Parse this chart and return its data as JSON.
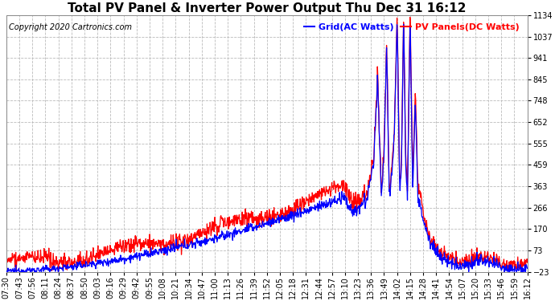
{
  "title": "Total PV Panel & Inverter Power Output Thu Dec 31 16:12",
  "copyright": "Copyright 2020 Cartronics.com",
  "legend_blue": "Grid(AC Watts)",
  "legend_red": "PV Panels(DC Watts)",
  "blue_color": "#0000FF",
  "red_color": "#FF0000",
  "background_color": "#FFFFFF",
  "grid_color": "#BBBBBB",
  "ylim": [
    -23.0,
    1133.8
  ],
  "yticks": [
    -23.0,
    73.4,
    169.8,
    266.2,
    362.6,
    459.0,
    555.4,
    651.8,
    748.2,
    844.6,
    941.0,
    1037.4,
    1133.8
  ],
  "xtick_labels": [
    "07:30",
    "07:43",
    "07:56",
    "08:11",
    "08:24",
    "08:37",
    "08:50",
    "09:03",
    "09:16",
    "09:29",
    "09:42",
    "09:55",
    "10:08",
    "10:21",
    "10:34",
    "10:47",
    "11:00",
    "11:13",
    "11:26",
    "11:39",
    "11:52",
    "12:05",
    "12:18",
    "12:31",
    "12:44",
    "12:57",
    "13:10",
    "13:23",
    "13:36",
    "13:49",
    "14:02",
    "14:15",
    "14:28",
    "14:41",
    "14:54",
    "15:07",
    "15:20",
    "15:33",
    "15:46",
    "15:59",
    "16:12"
  ],
  "title_fontsize": 11,
  "axis_fontsize": 7,
  "copyright_fontsize": 7,
  "legend_fontsize": 8,
  "line_width": 0.9
}
